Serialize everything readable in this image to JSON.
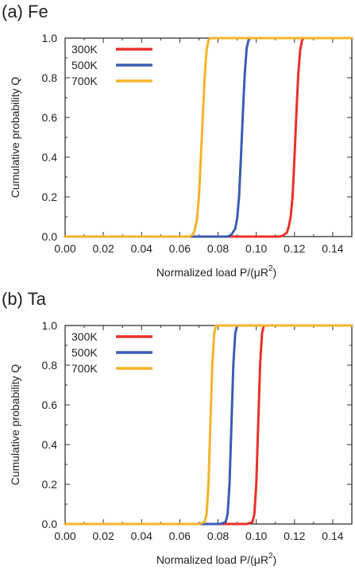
{
  "chart_data": [
    {
      "type": "line",
      "title": "(a) Fe",
      "xlabel": "Normalized load  P/(μR²)",
      "xlabel_parts": {
        "main": "Normalized load  P/(μR",
        "sup": "2",
        "close": ")"
      },
      "ylabel": "Cumulative probability  Q",
      "xlim": [
        0,
        0.15
      ],
      "ylim": [
        0,
        1.0
      ],
      "x_ticks": [
        "0.00",
        "0.02",
        "0.04",
        "0.06",
        "0.08",
        "0.10",
        "0.12",
        "0.14"
      ],
      "y_ticks": [
        "0.0",
        "0.2",
        "0.4",
        "0.6",
        "0.8",
        "1.0"
      ],
      "legend_position": "top-left",
      "grid": false,
      "series": [
        {
          "name": "300K",
          "color": "#e8312a",
          "x": [
            0.0,
            0.105,
            0.112,
            0.114,
            0.116,
            0.117,
            0.118,
            0.119,
            0.12,
            0.121,
            0.122,
            0.123,
            0.124,
            0.125,
            0.15
          ],
          "y": [
            0.0,
            0.0,
            0.0,
            0.005,
            0.02,
            0.05,
            0.1,
            0.2,
            0.4,
            0.62,
            0.82,
            0.94,
            0.99,
            1.0,
            1.0
          ]
        },
        {
          "name": "500K",
          "color": "#3b5cb5",
          "x": [
            0.0,
            0.08,
            0.085,
            0.087,
            0.089,
            0.09,
            0.091,
            0.092,
            0.093,
            0.094,
            0.095,
            0.096,
            0.097,
            0.15
          ],
          "y": [
            0.0,
            0.0,
            0.0,
            0.01,
            0.04,
            0.09,
            0.2,
            0.4,
            0.62,
            0.82,
            0.95,
            0.99,
            1.0,
            1.0
          ]
        },
        {
          "name": "700K",
          "color": "#f5b32a",
          "x": [
            0.0,
            0.06,
            0.065,
            0.067,
            0.068,
            0.069,
            0.07,
            0.071,
            0.072,
            0.073,
            0.074,
            0.075,
            0.076,
            0.15
          ],
          "y": [
            0.0,
            0.0,
            0.0,
            0.01,
            0.04,
            0.09,
            0.2,
            0.4,
            0.6,
            0.8,
            0.94,
            0.99,
            1.0,
            1.0
          ]
        }
      ]
    },
    {
      "type": "line",
      "title": "(b) Ta",
      "xlabel": "Normalized load  P/(μR²)",
      "xlabel_parts": {
        "main": "Normalized load  P/(μR",
        "sup": "2",
        "close": ")"
      },
      "ylabel": "Cumulative probability  Q",
      "xlim": [
        0,
        0.15
      ],
      "ylim": [
        0,
        1.0
      ],
      "x_ticks": [
        "0.00",
        "0.02",
        "0.04",
        "0.06",
        "0.08",
        "0.10",
        "0.12",
        "0.14"
      ],
      "y_ticks": [
        "0.0",
        "0.2",
        "0.4",
        "0.6",
        "0.8",
        "1.0"
      ],
      "legend_position": "top-left",
      "grid": false,
      "series": [
        {
          "name": "300K",
          "color": "#e8312a",
          "x": [
            0.0,
            0.095,
            0.098,
            0.099,
            0.1,
            0.101,
            0.102,
            0.103,
            0.104,
            0.15
          ],
          "y": [
            0.0,
            0.0,
            0.01,
            0.05,
            0.2,
            0.5,
            0.8,
            0.96,
            1.0,
            1.0
          ]
        },
        {
          "name": "500K",
          "color": "#3b5cb5",
          "x": [
            0.0,
            0.081,
            0.084,
            0.085,
            0.086,
            0.087,
            0.088,
            0.089,
            0.09,
            0.15
          ],
          "y": [
            0.0,
            0.0,
            0.01,
            0.05,
            0.2,
            0.5,
            0.8,
            0.96,
            1.0,
            1.0
          ]
        },
        {
          "name": "700K",
          "color": "#f5b32a",
          "x": [
            0.0,
            0.07,
            0.073,
            0.074,
            0.075,
            0.076,
            0.077,
            0.078,
            0.079,
            0.15
          ],
          "y": [
            0.0,
            0.0,
            0.01,
            0.05,
            0.2,
            0.5,
            0.8,
            0.96,
            1.0,
            1.0
          ]
        }
      ]
    }
  ]
}
